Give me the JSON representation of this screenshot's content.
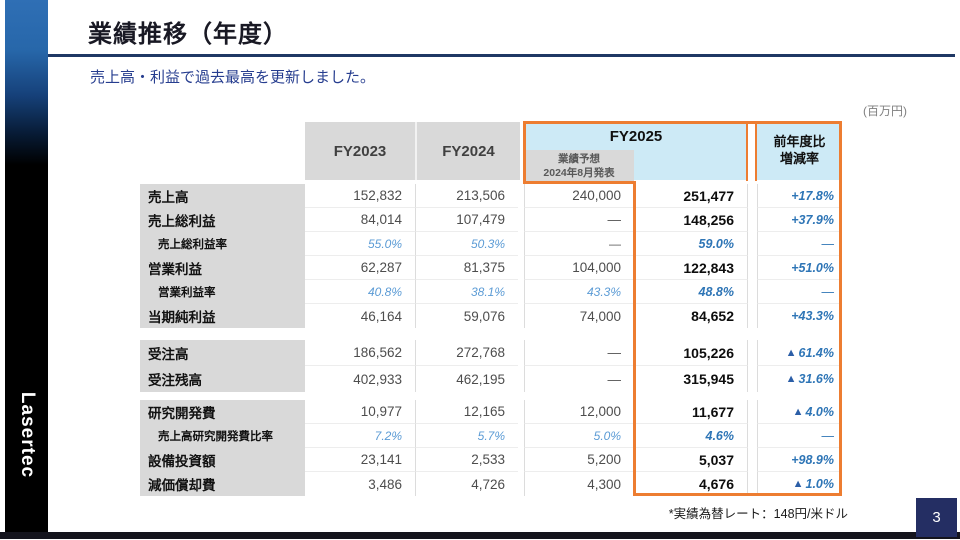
{
  "slide": {
    "title": "業績推移（年度）",
    "subtitle": "売上高・利益で過去最高を更新しました。",
    "unit_note": "(百万円)",
    "footnote": "*実績為替レート：148円/米ドル",
    "page_number": "3",
    "logo_text": "Lasertec"
  },
  "colors": {
    "accent_orange": "#ED7D31",
    "header_blue_bg": "#CDEAF6",
    "header_gray_bg": "#D9D9D9",
    "title_rule_navy": "#1F3864",
    "page_box_navy": "#242E63",
    "ratio_blue": "#5B9BD5",
    "yoy_blue": "#2E75B6",
    "triangle_navy": "#2B5EA7"
  },
  "table": {
    "headers": {
      "fy2023": "FY2023",
      "fy2024": "FY2024",
      "fy2025": "FY2025",
      "forecast_line1": "業績予想",
      "forecast_line2": "2024年8月発表",
      "yoy_line1": "前年度比",
      "yoy_line2": "増減率"
    },
    "sections": [
      {
        "rows": [
          {
            "label": "売上高",
            "sub": false,
            "ratio": false,
            "fy2023": "152,832",
            "fy2024": "213,506",
            "forecast": "240,000",
            "actual": "251,477",
            "yoy": "+17.8%"
          },
          {
            "label": "売上総利益",
            "sub": false,
            "ratio": false,
            "fy2023": "84,014",
            "fy2024": "107,479",
            "forecast": "—",
            "actual": "148,256",
            "yoy": "+37.9%"
          },
          {
            "label": "売上総利益率",
            "sub": true,
            "ratio": true,
            "fy2023": "55.0%",
            "fy2024": "50.3%",
            "forecast": "—",
            "actual": "59.0%",
            "yoy": "—"
          },
          {
            "label": "営業利益",
            "sub": false,
            "ratio": false,
            "fy2023": "62,287",
            "fy2024": "81,375",
            "forecast": "104,000",
            "actual": "122,843",
            "yoy": "+51.0%"
          },
          {
            "label": "営業利益率",
            "sub": true,
            "ratio": true,
            "fy2023": "40.8%",
            "fy2024": "38.1%",
            "forecast": "43.3%",
            "actual": "48.8%",
            "yoy": "—"
          },
          {
            "label": "当期純利益",
            "sub": false,
            "ratio": false,
            "fy2023": "46,164",
            "fy2024": "59,076",
            "forecast": "74,000",
            "actual": "84,652",
            "yoy": "+43.3%"
          }
        ]
      },
      {
        "rows": [
          {
            "label": "受注高",
            "sub": false,
            "ratio": false,
            "fy2023": "186,562",
            "fy2024": "272,768",
            "forecast": "—",
            "actual": "105,226",
            "yoy": "▲61.4%"
          },
          {
            "label": "受注残高",
            "sub": false,
            "ratio": false,
            "fy2023": "402,933",
            "fy2024": "462,195",
            "forecast": "—",
            "actual": "315,945",
            "yoy": "▲31.6%"
          }
        ]
      },
      {
        "rows": [
          {
            "label": "研究開発費",
            "sub": false,
            "ratio": false,
            "fy2023": "10,977",
            "fy2024": "12,165",
            "forecast": "12,000",
            "actual": "11,677",
            "yoy": "▲4.0%"
          },
          {
            "label": "売上高研究開発費比率",
            "sub": true,
            "ratio": true,
            "fy2023": "7.2%",
            "fy2024": "5.7%",
            "forecast": "5.0%",
            "actual": "4.6%",
            "yoy": "—"
          },
          {
            "label": "設備投資額",
            "sub": false,
            "ratio": false,
            "fy2023": "23,141",
            "fy2024": "2,533",
            "forecast": "5,200",
            "actual": "5,037",
            "yoy": "+98.9%"
          },
          {
            "label": "減価償却費",
            "sub": false,
            "ratio": false,
            "fy2023": "3,486",
            "fy2024": "4,726",
            "forecast": "4,300",
            "actual": "4,676",
            "yoy": "▲1.0%"
          }
        ]
      }
    ]
  }
}
